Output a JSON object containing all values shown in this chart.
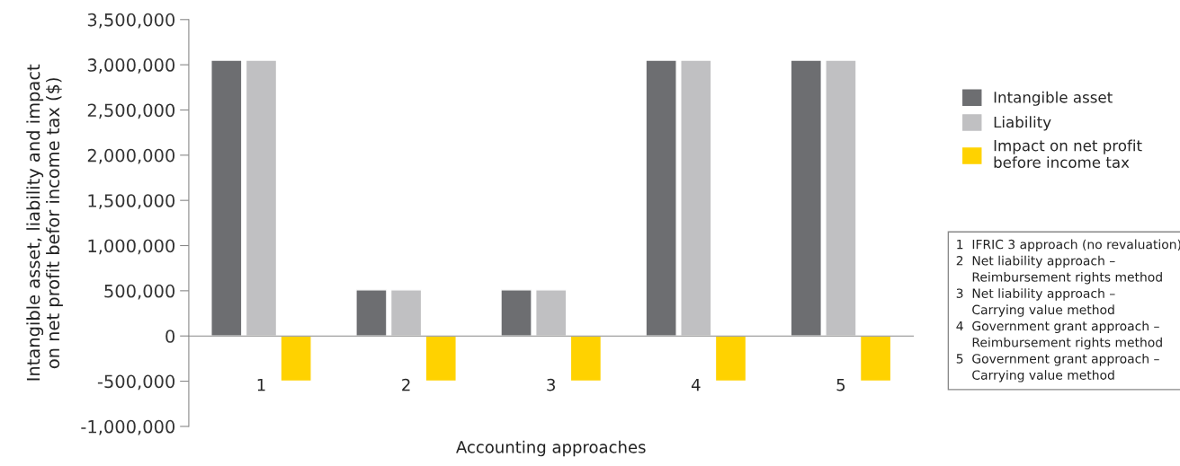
{
  "chart_data": {
    "type": "bar",
    "xlabel": "Accounting approaches",
    "ylabel": "Intangible asset, liability and impact\non net profit befor income tax ($)",
    "categories": [
      "1",
      "2",
      "3",
      "4",
      "5"
    ],
    "series": [
      {
        "name": "Intangible asset",
        "color": "#6d6e71",
        "values": [
          3050000,
          510000,
          510000,
          3050000,
          3050000
        ]
      },
      {
        "name": "Liability",
        "color": "#c0c0c2",
        "values": [
          3050000,
          510000,
          510000,
          3050000,
          3050000
        ]
      },
      {
        "name": "Impact on net profit\nbefore income tax",
        "color": "#ffd200",
        "values": [
          -500000,
          -500000,
          -500000,
          -500000,
          -500000
        ]
      }
    ],
    "ylim": [
      -1000000,
      3500000
    ],
    "yticks": [
      {
        "value": -1000000,
        "label": "-1,000,000"
      },
      {
        "value": -500000,
        "label": "-500,000"
      },
      0,
      {
        "value": 500000,
        "label": "500,000"
      },
      {
        "value": 1000000,
        "label": "1,000,000"
      },
      {
        "value": 1500000,
        "label": "1,500,000"
      },
      {
        "value": 2000000,
        "label": "2,000,000"
      },
      {
        "value": 2500000,
        "label": "2,500,000"
      },
      {
        "value": 3000000,
        "label": "3,000,000"
      },
      {
        "value": 3500000,
        "label": "3,500,000"
      }
    ],
    "legend": "right",
    "annotations": [
      "1  IFRIC 3 approach (no revaluation)\n2  Net liability approach –\n    Reimbursement rights method\n3  Net liability approach –\n    Carrying value method\n4  Government grant approach –\n    Reimbursement rights method\n5  Government grant approach –\n    Carrying value method"
    ]
  }
}
